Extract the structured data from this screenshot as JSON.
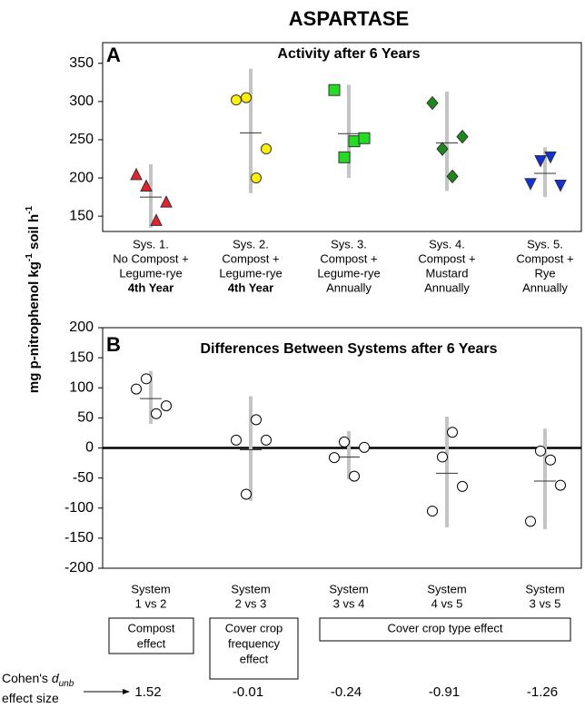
{
  "title": "ASPARTASE",
  "y_label": [
    {
      "text": "mg p-nitrophenol kg"
    },
    {
      "text": "-1",
      "sup": true
    },
    {
      "text": " soil h"
    },
    {
      "text": "-1",
      "sup": true
    }
  ],
  "chart_data": [
    {
      "type": "dot",
      "panel": "A",
      "title": "Activity after 6 Years",
      "categories": [
        [
          "Sys. 1.",
          "No Compost +",
          "Legume-rye",
          "4th Year"
        ],
        [
          "Sys. 2.",
          "Compost +",
          "Legume-rye",
          "4th Year"
        ],
        [
          "Sys. 3.",
          "Compost +",
          "Legume-rye",
          "Annually"
        ],
        [
          "Sys. 4.",
          "Compost +",
          "Mustard",
          "Annually"
        ],
        [
          "Sys. 5.",
          "Compost +",
          "Rye",
          "Annually"
        ]
      ],
      "bold_last_line": [
        true,
        true,
        false,
        false,
        false
      ],
      "points": [
        [
          205,
          190,
          145,
          169
        ],
        [
          302,
          305,
          200,
          238
        ],
        [
          315,
          227,
          248,
          252
        ],
        [
          298,
          238,
          202,
          254
        ],
        [
          192,
          222,
          227,
          190
        ]
      ],
      "means": [
        175,
        259,
        258,
        246,
        206
      ],
      "ci": [
        [
          135,
          218
        ],
        [
          180,
          343
        ],
        [
          200,
          322
        ],
        [
          183,
          313
        ],
        [
          175,
          240
        ]
      ],
      "markers": [
        "triangle",
        "circle",
        "square",
        "diamond",
        "triangle-down"
      ],
      "colors": [
        "#e8202a",
        "#fff200",
        "#22dd22",
        "#1a8a1a",
        "#1030e0"
      ],
      "ylim": [
        130,
        377
      ],
      "yticks": [
        150,
        200,
        250,
        300,
        350
      ]
    },
    {
      "type": "dot",
      "panel": "B",
      "title": "Differences Between Systems after 6 Years",
      "categories": [
        [
          "System",
          "1 vs 2"
        ],
        [
          "System",
          "2 vs 3"
        ],
        [
          "System",
          "3 vs 4"
        ],
        [
          "System",
          "4 vs 5"
        ],
        [
          "System",
          "3 vs 5"
        ]
      ],
      "points": [
        [
          98,
          115,
          57,
          70
        ],
        [
          13,
          -77,
          47,
          13
        ],
        [
          -16,
          10,
          -47,
          1
        ],
        [
          -105,
          -15,
          26,
          -64
        ],
        [
          -122,
          -5,
          -20,
          -62
        ]
      ],
      "means": [
        82,
        -3,
        -15,
        -42,
        -55
      ],
      "ci": [
        [
          40,
          128
        ],
        [
          -88,
          86
        ],
        [
          -52,
          28
        ],
        [
          -132,
          52
        ],
        [
          -135,
          32
        ]
      ],
      "markers": [
        "circle",
        "circle",
        "circle",
        "circle",
        "circle"
      ],
      "colors": [
        "#ffffff",
        "#ffffff",
        "#ffffff",
        "#ffffff",
        "#ffffff"
      ],
      "zero_line": true,
      "ylim": [
        -200,
        200
      ],
      "yticks": [
        -200,
        -150,
        -100,
        -50,
        0,
        50,
        100,
        150,
        200
      ],
      "effect_groups": [
        [
          "Compost",
          "effect"
        ],
        [
          "Cover crop",
          "frequency",
          "effect"
        ],
        [
          "Cover crop type effect"
        ]
      ],
      "cohens_label": [
        [
          {
            "text": "Cohen's "
          },
          {
            "text": "d",
            "italic": true
          },
          {
            "text": "unb",
            "sub": true,
            "italic": true
          }
        ],
        [
          {
            "text": "effect size"
          }
        ]
      ],
      "cohens_d": [
        1.52,
        -0.01,
        -0.24,
        -0.91,
        -1.26
      ]
    }
  ]
}
